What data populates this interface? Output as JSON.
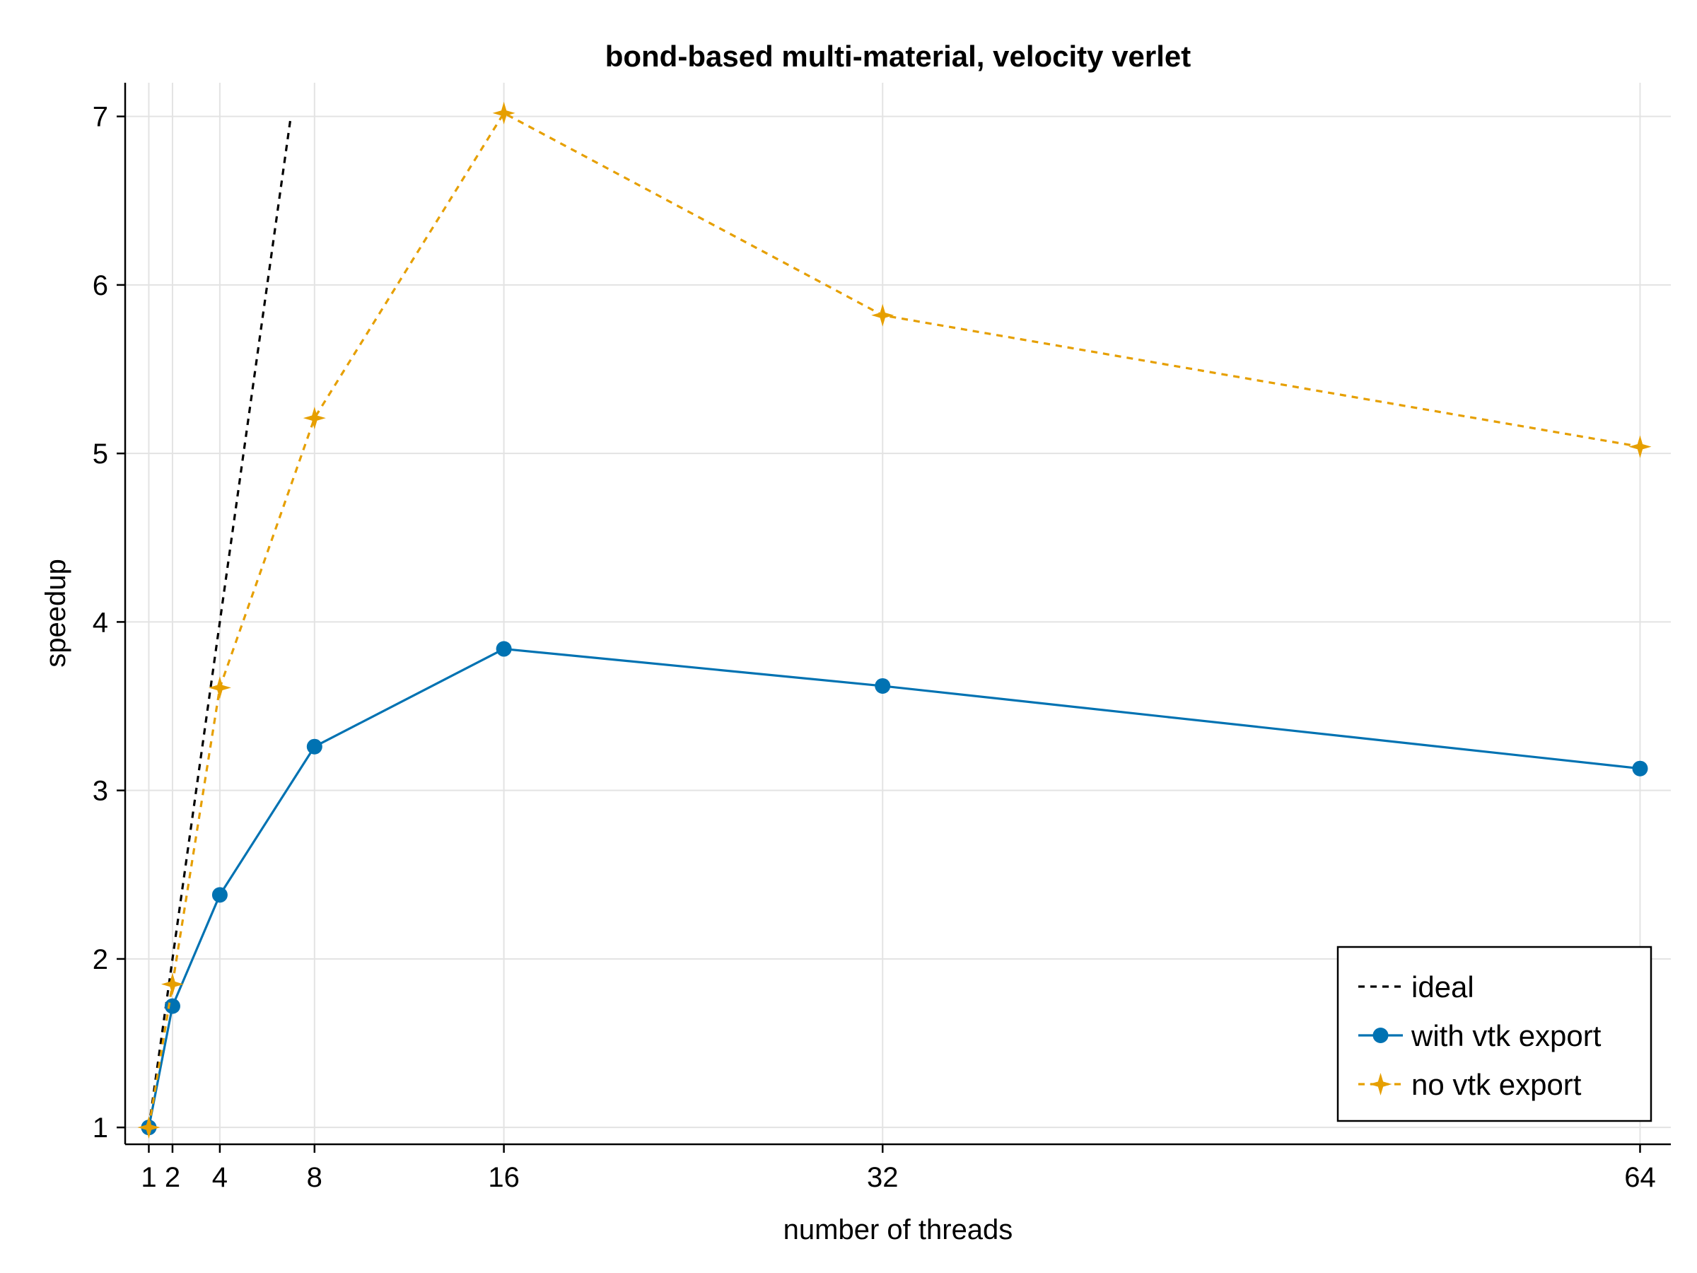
{
  "chart_data": {
    "type": "line",
    "title": "bond-based multi-material, velocity verlet",
    "xlabel": "number of threads",
    "ylabel": "speedup",
    "xlim": [
      0,
      65.3
    ],
    "ylim": [
      0.9,
      7.2
    ],
    "xticks": [
      1,
      2,
      4,
      8,
      16,
      32,
      64
    ],
    "yticks": [
      1,
      2,
      3,
      4,
      5,
      6,
      7
    ],
    "grid": true,
    "legend_position": "bottom-right",
    "series": [
      {
        "name": "ideal",
        "style": "dashed",
        "marker": "none",
        "color": "#000000",
        "x": [
          1,
          2,
          3,
          4,
          5,
          6,
          7
        ],
        "y": [
          1,
          2,
          3,
          4,
          5,
          6,
          7
        ]
      },
      {
        "name": "with vtk export",
        "style": "solid",
        "marker": "circle",
        "color": "#0072B2",
        "x": [
          1,
          2,
          4,
          8,
          16,
          32,
          64
        ],
        "y": [
          1.0,
          1.72,
          2.38,
          3.26,
          3.84,
          3.62,
          3.13
        ]
      },
      {
        "name": "no vtk export",
        "style": "dashed",
        "marker": "star",
        "color": "#E69F00",
        "x": [
          1,
          2,
          4,
          8,
          16,
          32,
          64
        ],
        "y": [
          1.0,
          1.85,
          3.61,
          5.21,
          7.02,
          5.82,
          5.04
        ]
      }
    ]
  }
}
